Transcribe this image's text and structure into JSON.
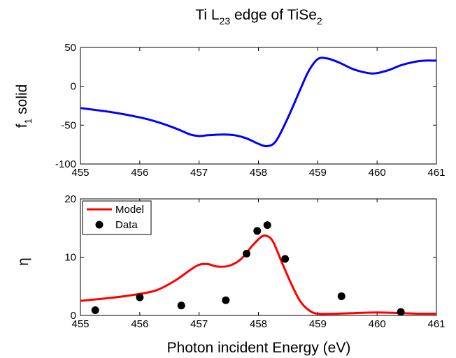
{
  "chart_data": [
    {
      "type": "line",
      "title": "Ti L23 edge of TiSe2",
      "title_parts": {
        "main": "Ti L",
        "sub1": "23",
        "mid": " edge of TiSe",
        "sub2": "2"
      },
      "xlabel": "",
      "ylabel": "f1 solid",
      "ylabel_parts": {
        "main": "f",
        "sub": "1",
        "rest": " solid"
      },
      "xlim": [
        455,
        461
      ],
      "ylim": [
        -100,
        50
      ],
      "xticks": [
        455,
        456,
        457,
        458,
        459,
        460,
        461
      ],
      "yticks": [
        -100,
        -50,
        0,
        50
      ],
      "series": [
        {
          "color": "#0000ff",
          "x": [
            455.0,
            455.5,
            456.0,
            456.3,
            456.6,
            456.85,
            457.0,
            457.15,
            457.4,
            457.6,
            457.8,
            458.0,
            458.15,
            458.3,
            458.5,
            458.7,
            458.85,
            459.0,
            459.15,
            459.35,
            459.6,
            459.85,
            460.0,
            460.2,
            460.4,
            460.6,
            460.8,
            461.0
          ],
          "y": [
            -28,
            -33,
            -40,
            -46,
            -54,
            -62,
            -64,
            -63,
            -62,
            -63,
            -67,
            -74,
            -77,
            -70,
            -40,
            -5,
            20,
            35,
            36,
            31,
            22,
            17,
            17,
            21,
            27,
            31,
            33,
            33
          ]
        }
      ]
    },
    {
      "type": "line",
      "title": "",
      "xlabel": "Photon incident Energy (eV)",
      "ylabel": "η",
      "xlim": [
        455,
        461
      ],
      "ylim": [
        0,
        20
      ],
      "xticks": [
        455,
        456,
        457,
        458,
        459,
        460,
        461
      ],
      "yticks": [
        0,
        10,
        20
      ],
      "legend": {
        "placement": "top-left"
      },
      "series": [
        {
          "name": "Model",
          "kind": "line",
          "color": "#ff0000",
          "x": [
            455.0,
            455.5,
            456.0,
            456.3,
            456.6,
            456.85,
            457.0,
            457.15,
            457.3,
            457.5,
            457.7,
            457.9,
            458.05,
            458.15,
            458.25,
            458.4,
            458.55,
            458.7,
            458.85,
            459.0,
            459.3,
            459.6,
            460.0,
            460.4,
            460.7,
            461.0
          ],
          "y": [
            2.5,
            3.0,
            3.7,
            4.4,
            6.0,
            7.8,
            8.7,
            8.8,
            8.4,
            8.5,
            9.6,
            12.0,
            13.5,
            13.6,
            12.6,
            9.0,
            5.5,
            2.5,
            0.9,
            0.3,
            0.3,
            0.4,
            0.5,
            0.4,
            0.3,
            0.3
          ]
        },
        {
          "name": "Data",
          "kind": "scatter",
          "color": "#000000",
          "x": [
            455.25,
            456.0,
            456.7,
            457.45,
            457.8,
            457.98,
            458.15,
            458.45,
            459.4,
            460.4
          ],
          "y": [
            0.9,
            3.1,
            1.7,
            2.6,
            10.6,
            14.5,
            15.5,
            9.7,
            3.3,
            0.6
          ]
        }
      ]
    }
  ]
}
